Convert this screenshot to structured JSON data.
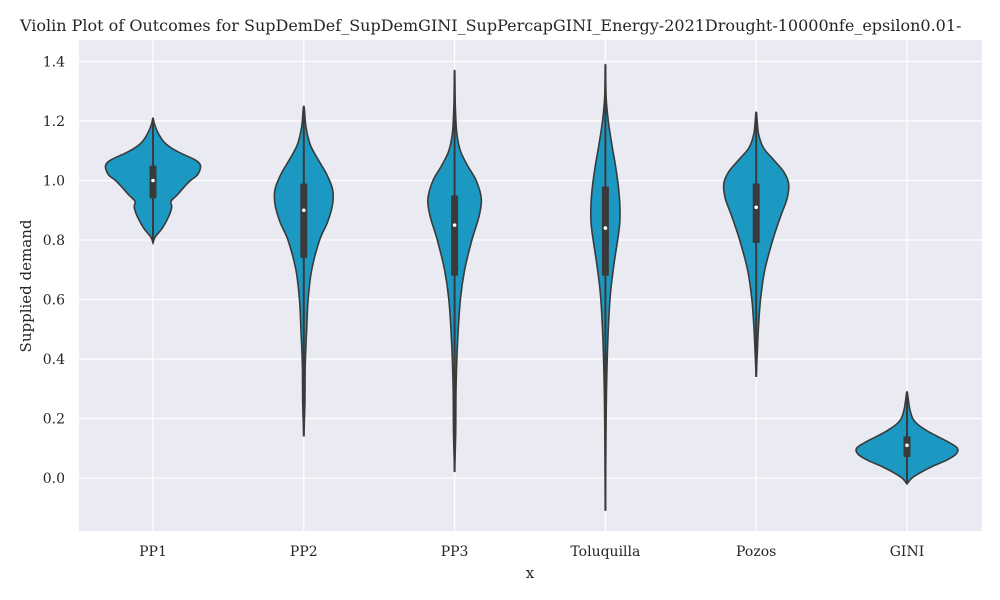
{
  "chart_data": {
    "type": "violin",
    "title": "Violin Plot of Outcomes for SupDemDef_SupDemGINI_SupPercapGINI_Energy-2021Drought-10000nfe_epsilon0.01-",
    "xlabel": "x",
    "ylabel": "Supplied demand",
    "ylim": [
      -0.18,
      1.47
    ],
    "yticks": [
      0.0,
      0.2,
      0.4,
      0.6,
      0.8,
      1.0,
      1.2,
      1.4
    ],
    "ytick_labels": [
      "0.0",
      "0.2",
      "0.4",
      "0.6",
      "0.8",
      "1.0",
      "1.2",
      "1.4"
    ],
    "grid": true,
    "violin_color": "#1b99c2",
    "outline_color": "#3a3a3a",
    "plot_background": "#eaeaf2",
    "categories": [
      "PP1",
      "PP2",
      "PP3",
      "Toluquilla",
      "Pozos",
      "GINI"
    ],
    "violins": [
      {
        "category": "PP1",
        "min": 0.79,
        "q1": 0.94,
        "median": 1.0,
        "q3": 1.05,
        "max": 1.21,
        "profile": [
          [
            0.79,
            0.0
          ],
          [
            0.81,
            0.03
          ],
          [
            0.84,
            0.13
          ],
          [
            0.88,
            0.22
          ],
          [
            0.91,
            0.26
          ],
          [
            0.93,
            0.25
          ],
          [
            0.95,
            0.33
          ],
          [
            0.98,
            0.44
          ],
          [
            1.0,
            0.52
          ],
          [
            1.02,
            0.62
          ],
          [
            1.05,
            0.66
          ],
          [
            1.07,
            0.58
          ],
          [
            1.09,
            0.4
          ],
          [
            1.11,
            0.25
          ],
          [
            1.13,
            0.15
          ],
          [
            1.16,
            0.07
          ],
          [
            1.19,
            0.02
          ],
          [
            1.21,
            0.0
          ]
        ]
      },
      {
        "category": "PP2",
        "min": 0.14,
        "q1": 0.74,
        "median": 0.9,
        "q3": 0.99,
        "max": 1.25,
        "profile": [
          [
            0.14,
            0.0
          ],
          [
            0.25,
            0.015
          ],
          [
            0.38,
            0.02
          ],
          [
            0.5,
            0.04
          ],
          [
            0.6,
            0.06
          ],
          [
            0.7,
            0.11
          ],
          [
            0.8,
            0.22
          ],
          [
            0.86,
            0.33
          ],
          [
            0.92,
            0.4
          ],
          [
            0.97,
            0.4
          ],
          [
            1.02,
            0.32
          ],
          [
            1.07,
            0.2
          ],
          [
            1.12,
            0.09
          ],
          [
            1.18,
            0.03
          ],
          [
            1.25,
            0.0
          ]
        ]
      },
      {
        "category": "PP3",
        "min": 0.02,
        "q1": 0.68,
        "median": 0.85,
        "q3": 0.95,
        "max": 1.37,
        "profile": [
          [
            0.02,
            0.0
          ],
          [
            0.15,
            0.015
          ],
          [
            0.3,
            0.02
          ],
          [
            0.45,
            0.04
          ],
          [
            0.6,
            0.08
          ],
          [
            0.7,
            0.14
          ],
          [
            0.8,
            0.24
          ],
          [
            0.88,
            0.34
          ],
          [
            0.94,
            0.37
          ],
          [
            1.0,
            0.3
          ],
          [
            1.05,
            0.18
          ],
          [
            1.1,
            0.08
          ],
          [
            1.16,
            0.03
          ],
          [
            1.25,
            0.01
          ],
          [
            1.37,
            0.0
          ]
        ]
      },
      {
        "category": "Toluquilla",
        "min": -0.11,
        "q1": 0.68,
        "median": 0.84,
        "q3": 0.98,
        "max": 1.39,
        "profile": [
          [
            -0.11,
            0.0
          ],
          [
            0.05,
            0.005
          ],
          [
            0.2,
            0.01
          ],
          [
            0.35,
            0.02
          ],
          [
            0.5,
            0.04
          ],
          [
            0.62,
            0.07
          ],
          [
            0.72,
            0.12
          ],
          [
            0.8,
            0.17
          ],
          [
            0.86,
            0.2
          ],
          [
            0.92,
            0.2
          ],
          [
            0.98,
            0.18
          ],
          [
            1.05,
            0.14
          ],
          [
            1.12,
            0.09
          ],
          [
            1.2,
            0.04
          ],
          [
            1.28,
            0.01
          ],
          [
            1.39,
            0.0
          ]
        ]
      },
      {
        "category": "Pozos",
        "min": 0.34,
        "q1": 0.79,
        "median": 0.91,
        "q3": 0.99,
        "max": 1.23,
        "profile": [
          [
            0.34,
            0.0
          ],
          [
            0.42,
            0.015
          ],
          [
            0.5,
            0.03
          ],
          [
            0.6,
            0.06
          ],
          [
            0.7,
            0.12
          ],
          [
            0.8,
            0.23
          ],
          [
            0.88,
            0.34
          ],
          [
            0.94,
            0.43
          ],
          [
            0.99,
            0.45
          ],
          [
            1.03,
            0.38
          ],
          [
            1.07,
            0.24
          ],
          [
            1.11,
            0.1
          ],
          [
            1.16,
            0.03
          ],
          [
            1.23,
            0.0
          ]
        ]
      },
      {
        "category": "GINI",
        "min": -0.02,
        "q1": 0.07,
        "median": 0.11,
        "q3": 0.14,
        "max": 0.29,
        "profile": [
          [
            -0.02,
            0.0
          ],
          [
            0.0,
            0.07
          ],
          [
            0.02,
            0.2
          ],
          [
            0.04,
            0.36
          ],
          [
            0.06,
            0.55
          ],
          [
            0.08,
            0.68
          ],
          [
            0.1,
            0.7
          ],
          [
            0.12,
            0.58
          ],
          [
            0.14,
            0.42
          ],
          [
            0.16,
            0.27
          ],
          [
            0.18,
            0.15
          ],
          [
            0.2,
            0.08
          ],
          [
            0.23,
            0.04
          ],
          [
            0.26,
            0.02
          ],
          [
            0.29,
            0.0
          ]
        ]
      }
    ]
  }
}
